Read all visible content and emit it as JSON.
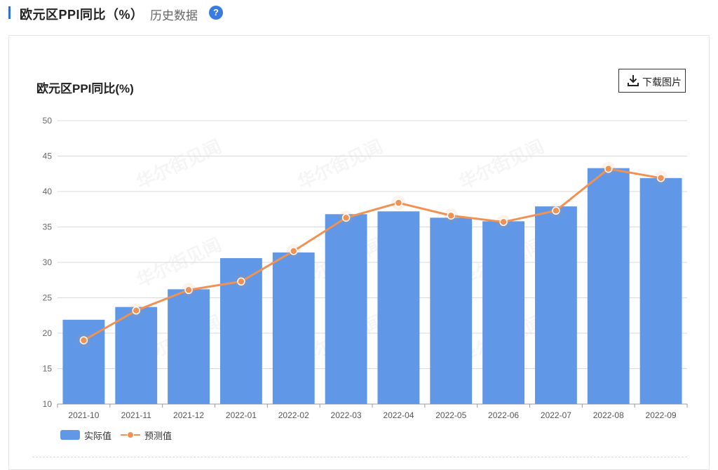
{
  "header": {
    "title": "欧元区PPI同比（%）",
    "tab": "历史数据",
    "help_glyph": "?"
  },
  "toolbar": {
    "download_label": "下载图片"
  },
  "watermark": "华尔街见闻",
  "colors": {
    "bar": "#6097e6",
    "line": "#ef9254",
    "accent": "#2f6fd6"
  },
  "chart_data": {
    "type": "bar",
    "title": "欧元区PPI同比(%)",
    "categories": [
      "2021-10",
      "2021-11",
      "2021-12",
      "2022-01",
      "2022-02",
      "2022-03",
      "2022-04",
      "2022-05",
      "2022-06",
      "2022-07",
      "2022-08",
      "2022-09"
    ],
    "series": [
      {
        "name": "实际值",
        "type": "bar",
        "values": [
          21.9,
          23.7,
          26.2,
          30.6,
          31.4,
          36.8,
          37.2,
          36.3,
          35.8,
          37.9,
          43.3,
          41.9
        ]
      },
      {
        "name": "预测值",
        "type": "line",
        "values": [
          19.0,
          23.2,
          26.1,
          27.3,
          31.6,
          36.3,
          38.4,
          36.6,
          35.7,
          37.3,
          43.2,
          41.9
        ]
      }
    ],
    "ylim": [
      10,
      50
    ],
    "yticks": [
      10,
      15,
      20,
      25,
      30,
      35,
      40,
      45,
      50
    ],
    "grid": true,
    "legend": "bottom-left"
  }
}
